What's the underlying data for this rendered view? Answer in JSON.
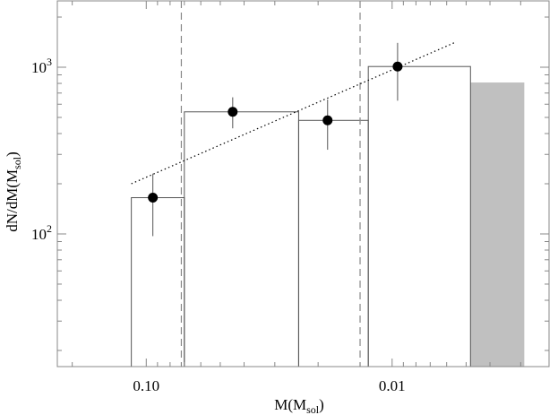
{
  "chart_data": {
    "type": "bar",
    "title": "",
    "xlabel": {
      "main": "M(M",
      "sub": "sol",
      "close": ")"
    },
    "ylabel": {
      "main": "dN/dM(M",
      "sub": "sol",
      "close": ")"
    },
    "x_scale": "log",
    "x_reversed": true,
    "y_scale": "log",
    "xlim": [
      0.23,
      0.0023
    ],
    "ylim": [
      16,
      2500
    ],
    "x_ticks": [
      {
        "value": 0.1,
        "label": "0.10"
      },
      {
        "value": 0.01,
        "label": "0.01"
      }
    ],
    "y_ticks": [
      {
        "value": 100,
        "label": "10",
        "exp": "2"
      },
      {
        "value": 1000,
        "label": "10",
        "exp": "3"
      }
    ],
    "bins": [
      {
        "x_from": 0.115,
        "x_to": 0.07,
        "value": 165
      },
      {
        "x_from": 0.07,
        "x_to": 0.024,
        "value": 540
      },
      {
        "x_from": 0.024,
        "x_to": 0.0125,
        "value": 480
      },
      {
        "x_from": 0.0125,
        "x_to": 0.0048,
        "value": 1010
      }
    ],
    "shaded_bin": {
      "x_from": 0.0048,
      "x_to": 0.0029,
      "value": 810,
      "color": "#c0c0c0"
    },
    "points": [
      {
        "x": 0.094,
        "y": 165,
        "err_low": 97,
        "err_high": 230
      },
      {
        "x": 0.0445,
        "y": 540,
        "err_low": 430,
        "err_high": 660
      },
      {
        "x": 0.0183,
        "y": 480,
        "err_low": 320,
        "err_high": 640
      },
      {
        "x": 0.0095,
        "y": 1010,
        "err_low": 630,
        "err_high": 1400
      }
    ],
    "fit_line": {
      "x_from": 0.115,
      "y_from": 200,
      "x_to": 0.0056,
      "y_to": 1400,
      "style": "dotted"
    },
    "vlines": [
      {
        "x": 0.072,
        "style": "dashed"
      },
      {
        "x": 0.0135,
        "style": "dashed"
      }
    ],
    "grid": false,
    "legend": "none"
  }
}
